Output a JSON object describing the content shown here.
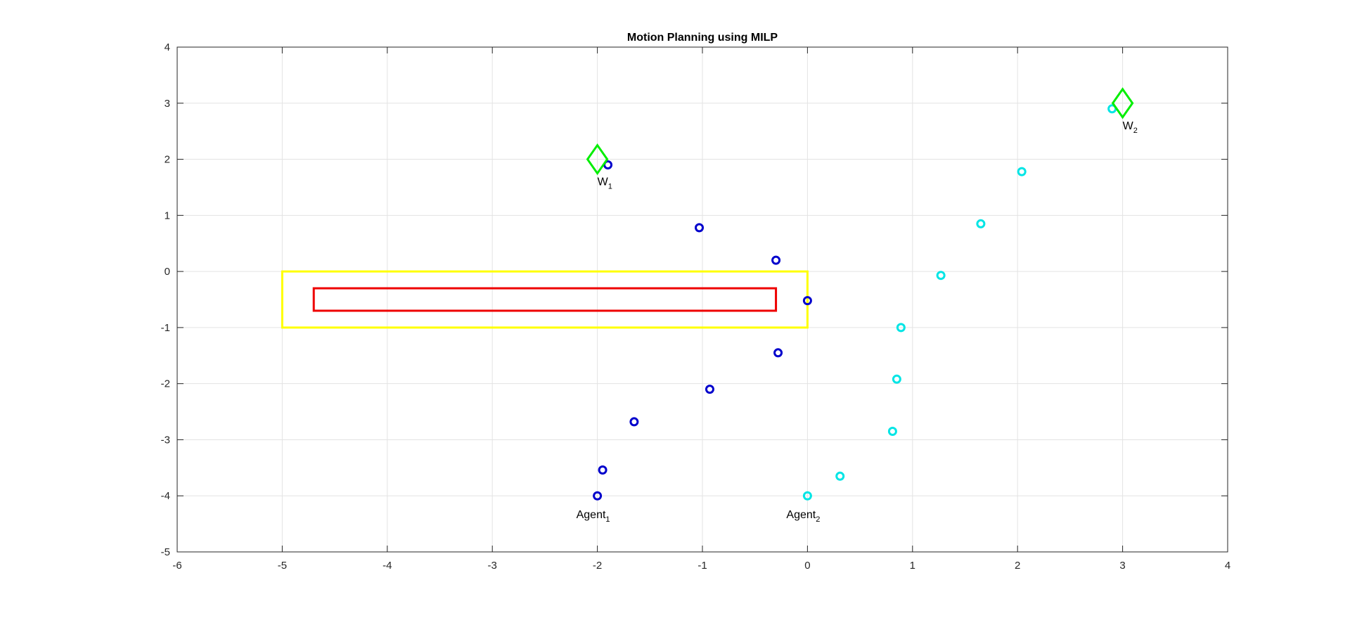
{
  "chart_data": {
    "type": "scatter",
    "title": "Motion Planning using MILP",
    "xlabel": "",
    "ylabel": "",
    "xlim": [
      -6,
      4
    ],
    "ylim": [
      -5,
      4
    ],
    "x_ticks": [
      -6,
      -5,
      -4,
      -3,
      -2,
      -1,
      0,
      1,
      2,
      3,
      4
    ],
    "y_ticks": [
      -5,
      -4,
      -3,
      -2,
      -1,
      0,
      1,
      2,
      3,
      4
    ],
    "grid": true,
    "series": [
      {
        "marker": "circle",
        "color": "#0000cc",
        "points": [
          {
            "x": -2.0,
            "y": -4.0
          },
          {
            "x": -1.95,
            "y": -3.54
          },
          {
            "x": -1.65,
            "y": -2.68
          },
          {
            "x": -0.93,
            "y": -2.1
          },
          {
            "x": -0.28,
            "y": -1.45
          },
          {
            "x": 0.0,
            "y": -0.52
          },
          {
            "x": -0.3,
            "y": 0.2
          },
          {
            "x": -1.03,
            "y": 0.78
          },
          {
            "x": -1.9,
            "y": 1.9
          }
        ]
      },
      {
        "marker": "circle",
        "color": "#00e5e5",
        "points": [
          {
            "x": 0.0,
            "y": -4.0
          },
          {
            "x": 0.31,
            "y": -3.65
          },
          {
            "x": 0.81,
            "y": -2.85
          },
          {
            "x": 0.85,
            "y": -1.92
          },
          {
            "x": 0.89,
            "y": -1.0
          },
          {
            "x": 1.27,
            "y": -0.07
          },
          {
            "x": 1.65,
            "y": 0.85
          },
          {
            "x": 2.04,
            "y": 1.78
          },
          {
            "x": 2.9,
            "y": 2.9
          }
        ]
      }
    ],
    "waypoints": [
      {
        "label": "W",
        "sub": "1",
        "x": -2,
        "y": 2,
        "color": "#00ee00"
      },
      {
        "label": "W",
        "sub": "2",
        "x": 3,
        "y": 3,
        "color": "#00ee00"
      }
    ],
    "agent_labels": [
      {
        "label": "Agent",
        "sub": "1",
        "x": -2,
        "y": -4
      },
      {
        "label": "Agent",
        "sub": "2",
        "x": 0,
        "y": -4
      }
    ],
    "rectangles": [
      {
        "x_min": -5,
        "x_max": 0,
        "y_min": -1,
        "y_max": 0,
        "color": "#ffff00"
      },
      {
        "x_min": -4.7,
        "x_max": -0.3,
        "y_min": -0.7,
        "y_max": -0.3,
        "color": "#ee0000"
      }
    ]
  }
}
